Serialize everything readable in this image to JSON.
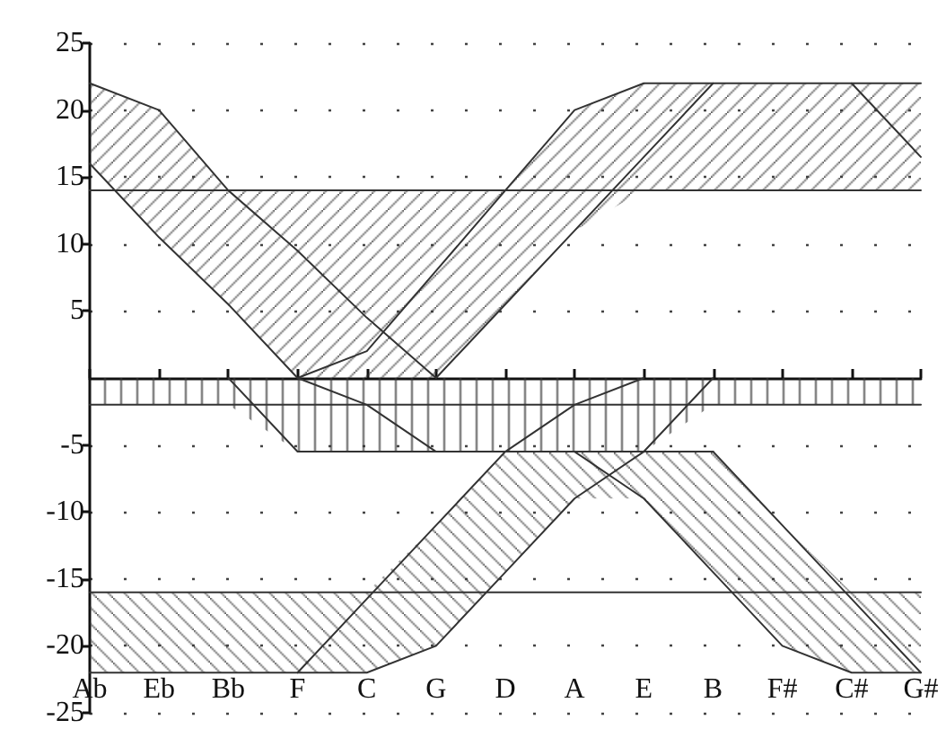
{
  "chart_data": {
    "type": "line",
    "categories": [
      "Ab",
      "Eb",
      "Bb",
      "F",
      "C",
      "G",
      "D",
      "A",
      "E",
      "B",
      "F#",
      "C#",
      "G#"
    ],
    "ylim": [
      -25,
      25
    ],
    "yticks": [
      -25,
      -20,
      -15,
      -10,
      -5,
      5,
      10,
      15,
      20,
      25
    ],
    "grid": "y",
    "marker": "none",
    "line_style": "solid",
    "series": [
      {
        "type": "area",
        "color": "#333333",
        "values": [
          -2,
          -2,
          -2,
          -5.5,
          -5.5,
          -5.5,
          -5.5,
          -5.5,
          -5.5,
          -2,
          -2,
          -2,
          -2
        ]
      },
      {
        "color": "#333333",
        "values": [
          22,
          20,
          14,
          9.5,
          4.5,
          0,
          5.5,
          11,
          16.5,
          22,
          null,
          null,
          null
        ]
      },
      {
        "color": "#333333",
        "values": [
          16,
          10.5,
          5.5,
          0,
          -2,
          -5.5,
          null,
          null,
          null,
          null,
          null,
          null,
          null
        ]
      },
      {
        "color": "#333333",
        "values": [
          14,
          14,
          14,
          14,
          14,
          14,
          14,
          14,
          14,
          14,
          14,
          14,
          14
        ],
        "lower": [
          16,
          10.5,
          5.5,
          0,
          0,
          0,
          5.5,
          11,
          14,
          14,
          14,
          14,
          14
        ],
        "upper": [
          22,
          20,
          14,
          14,
          14,
          14,
          14,
          20,
          22,
          22,
          22,
          22,
          22
        ]
      },
      {
        "color": "#333333",
        "values": [
          null,
          null,
          null,
          0,
          2,
          8,
          14,
          20,
          22,
          22,
          22,
          22,
          22
        ]
      },
      {
        "color": "#333333",
        "values": [
          null,
          null,
          null,
          null,
          null,
          null,
          null,
          null,
          null,
          null,
          null,
          22,
          16.5
        ]
      },
      {
        "color": "#333333",
        "values": [
          -2,
          -2,
          -2,
          -2,
          -2,
          -2,
          -2,
          -2,
          -2,
          -2,
          -2,
          -2,
          -2
        ]
      },
      {
        "color": "#333333",
        "values": [
          null,
          null,
          0,
          -5.5,
          -5.5,
          -5.5,
          -5.5,
          -5.5,
          -5.5,
          -5.5,
          null,
          null,
          null
        ]
      },
      {
        "color": "#333333",
        "values": [
          null,
          null,
          null,
          -22,
          -16.5,
          -11,
          -5.5,
          -2,
          0,
          null,
          null,
          null,
          null
        ]
      },
      {
        "color": "#333333",
        "values": [
          -22,
          -22,
          -22,
          -22,
          -22,
          -20,
          -14.5,
          -9,
          -5.5,
          0,
          null,
          null,
          null
        ]
      },
      {
        "color": "#333333",
        "values": [
          -16,
          -16,
          -16,
          -16,
          -16,
          -16,
          -16,
          -16,
          -16,
          -16,
          -16,
          -16,
          -16
        ],
        "lower": [
          -22,
          -22,
          -22,
          -22,
          -22,
          -20,
          -14.5,
          -9,
          -9,
          -14.5,
          -20,
          -22,
          -22
        ],
        "upper": [
          -16,
          -16,
          -16,
          -16,
          -16,
          -11,
          -5.5,
          -5.5,
          -5.5,
          -5.5,
          -11,
          -16,
          -16
        ]
      },
      {
        "color": "#333333",
        "values": [
          null,
          null,
          null,
          null,
          null,
          null,
          null,
          -5.5,
          -9,
          -14.5,
          -20,
          -22,
          -22
        ]
      },
      {
        "color": "#333333",
        "values": [
          null,
          null,
          null,
          null,
          null,
          null,
          null,
          null,
          null,
          -5.5,
          -11,
          -16.5,
          -22
        ]
      }
    ]
  }
}
